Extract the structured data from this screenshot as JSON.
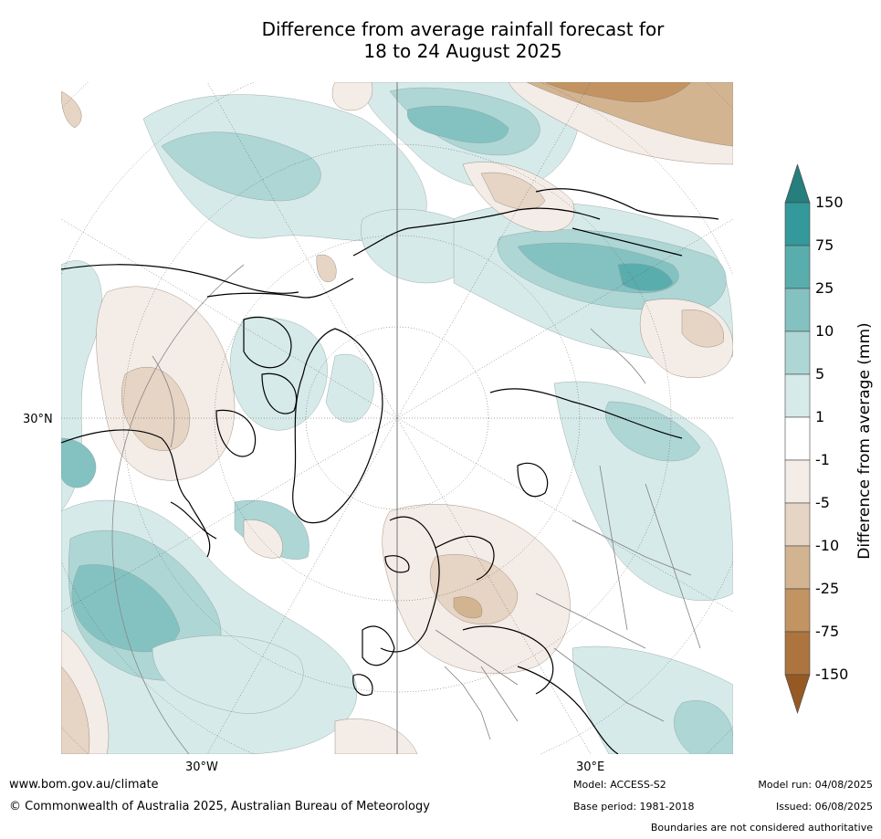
{
  "title_line1": "Difference from average rainfall forecast for",
  "title_line2": "18 to 24 August 2025",
  "graticule_labels": {
    "lat_30n": "30°N",
    "lon_30w": "30°W",
    "lon_30e": "30°E"
  },
  "colorbar": {
    "title": "Difference from average (mm)",
    "ticks": [
      "150",
      "75",
      "25",
      "10",
      "5",
      "1",
      "-1",
      "-5",
      "-10",
      "-25",
      "-75",
      "-150"
    ],
    "bins_top_to_bottom": [
      {
        "range": "> 150",
        "color": "#267e7d"
      },
      {
        "range": "75 to 150",
        "color": "#33999a"
      },
      {
        "range": "25 to 75",
        "color": "#5aadad"
      },
      {
        "range": "10 to 25",
        "color": "#84c2c1"
      },
      {
        "range": "5 to 10",
        "color": "#add6d5"
      },
      {
        "range": "1 to 5",
        "color": "#d6eae9"
      },
      {
        "range": "-1 to 1",
        "color": "#ffffff"
      },
      {
        "range": "-5 to -1",
        "color": "#f4ece7"
      },
      {
        "range": "-10 to -5",
        "color": "#e6d4c4"
      },
      {
        "range": "-25 to -10",
        "color": "#d3b491"
      },
      {
        "range": "-75 to -25",
        "color": "#c29462"
      },
      {
        "range": "-150 to -75",
        "color": "#ad743f"
      },
      {
        "range": "< -150",
        "color": "#955a24"
      }
    ]
  },
  "footer": {
    "url": "www.bom.gov.au/climate",
    "copyright": "© Commonwealth of Australia 2025, Australian Bureau of Meteorology",
    "model": "Model: ACCESS-S2",
    "base_period": "Base period: 1981-2018",
    "model_run": "Model run: 04/08/2025",
    "issued": "Issued: 06/08/2025",
    "disclaimer": "Boundaries are not considered authoritative"
  }
}
